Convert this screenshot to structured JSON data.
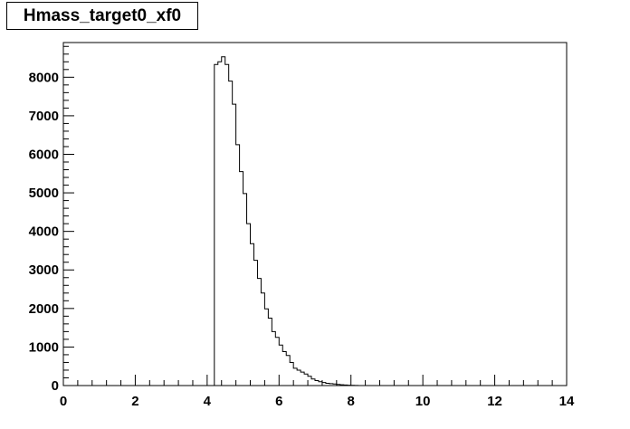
{
  "chart_data": {
    "type": "histogram",
    "title": "Hmass_target0_xf0",
    "xlim": [
      0,
      14
    ],
    "ylim": [
      0,
      8900
    ],
    "x_ticks": [
      0,
      2,
      4,
      6,
      8,
      10,
      12,
      14
    ],
    "x_tick_labels": [
      "0",
      "2",
      "4",
      "6",
      "8",
      "10",
      "12",
      "14"
    ],
    "y_ticks": [
      0,
      1000,
      2000,
      3000,
      4000,
      5000,
      6000,
      7000,
      8000
    ],
    "y_tick_labels": [
      "0",
      "1000",
      "2000",
      "3000",
      "4000",
      "5000",
      "6000",
      "7000",
      "8000"
    ],
    "bin_width": 0.1,
    "bins_x_start": [
      4.2,
      4.3,
      4.4,
      4.5,
      4.6,
      4.7,
      4.8,
      4.9,
      5.0,
      5.1,
      5.2,
      5.3,
      5.4,
      5.5,
      5.6,
      5.7,
      5.8,
      5.9,
      6.0,
      6.1,
      6.2,
      6.3,
      6.4,
      6.5,
      6.6,
      6.7,
      6.8,
      6.9,
      7.0,
      7.1,
      7.2,
      7.3,
      7.4,
      7.5,
      7.6,
      7.7,
      7.8,
      7.9,
      8.0,
      8.1
    ],
    "counts": [
      8330,
      8400,
      8530,
      8330,
      7900,
      7300,
      6250,
      5550,
      4980,
      4200,
      3680,
      3250,
      2780,
      2400,
      1990,
      1750,
      1400,
      1250,
      1050,
      880,
      780,
      600,
      450,
      400,
      350,
      300,
      240,
      170,
      130,
      100,
      80,
      60,
      50,
      40,
      30,
      20,
      15,
      10,
      5,
      3
    ]
  }
}
